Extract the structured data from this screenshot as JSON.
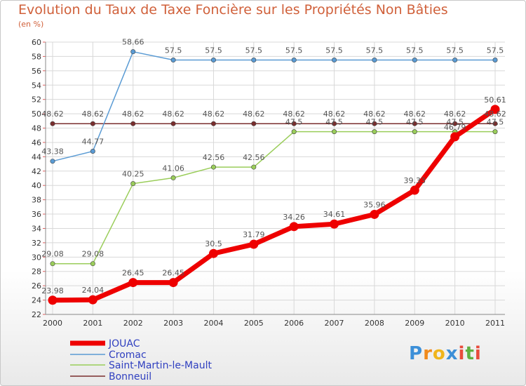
{
  "header": {
    "title": "Evolution du Taux de Taxe Foncière sur les Propriétés Non Bâties",
    "subtitle": "(en %)"
  },
  "brand": {
    "letters": [
      "P",
      "r",
      "o",
      "x",
      "i",
      "t",
      "i"
    ],
    "colors": [
      "#3c8fd8",
      "#f08a1c",
      "#f0b51c",
      "#3c8fd8",
      "#e84c3c",
      "#60b040",
      "#e84c3c"
    ]
  },
  "chart_data": {
    "type": "line",
    "title": "Evolution du Taux de Taxe Foncière sur les Propriétés Non Bâties",
    "ylabel": "(en %)",
    "xlabel": "",
    "x": [
      "2000",
      "2001",
      "2002",
      "2003",
      "2004",
      "2005",
      "2006",
      "2007",
      "2008",
      "2009",
      "2010",
      "2011"
    ],
    "ylim": [
      22,
      60
    ],
    "yticks": [
      22,
      24,
      26,
      28,
      30,
      32,
      34,
      36,
      38,
      40,
      42,
      44,
      46,
      48,
      50,
      52,
      54,
      56,
      58,
      60
    ],
    "grid": true,
    "legend_position": "bottom-left",
    "series": [
      {
        "name": "JOUAC",
        "color": "#ee0000",
        "values": [
          23.98,
          24.04,
          26.45,
          26.45,
          30.5,
          31.79,
          34.26,
          34.61,
          35.96,
          39.33,
          46.79,
          50.61
        ],
        "labels": [
          "23.98",
          "24.04",
          "26.45",
          "26.45",
          "30.5",
          "31.79",
          "34.26",
          "34.61",
          "35.96",
          "39.33",
          "46.79",
          "50.61"
        ]
      },
      {
        "name": "Cromac",
        "color": "#5a9bd4",
        "values": [
          43.38,
          44.77,
          58.66,
          57.5,
          57.5,
          57.5,
          57.5,
          57.5,
          57.5,
          57.5,
          57.5,
          57.5
        ],
        "labels": [
          "43.38",
          "44.77",
          "58.66",
          "57.5",
          "57.5",
          "57.5",
          "57.5",
          "57.5",
          "57.5",
          "57.5",
          "57.5",
          "57.5"
        ]
      },
      {
        "name": "Saint-Martin-le-Mault",
        "color": "#9acd5a",
        "values": [
          29.08,
          29.08,
          40.25,
          41.06,
          42.56,
          42.56,
          47.5,
          47.5,
          47.5,
          47.5,
          47.5,
          47.5
        ],
        "labels": [
          "29.08",
          "29.08",
          "40.25",
          "41.06",
          "42.56",
          "42.56",
          "47.5",
          "47.5",
          "47.5",
          "47.5",
          "47.5",
          "47.5"
        ]
      },
      {
        "name": "Bonneuil",
        "color": "#7a2e2e",
        "values": [
          48.62,
          48.62,
          48.62,
          48.62,
          48.62,
          48.62,
          48.62,
          48.62,
          48.62,
          48.62,
          48.62,
          48.62
        ],
        "labels": [
          "48.62",
          "48.62",
          "48.62",
          "48.62",
          "48.62",
          "48.62",
          "48.62",
          "48.62",
          "48.62",
          "48.62",
          "48.62",
          "48.62"
        ]
      }
    ]
  }
}
